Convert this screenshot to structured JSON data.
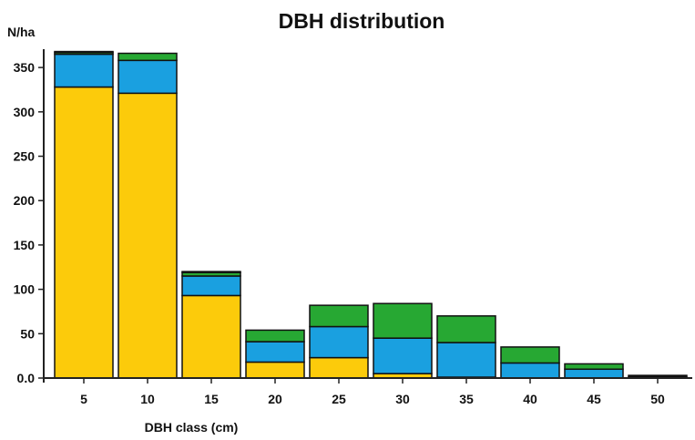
{
  "chart_data": {
    "type": "bar",
    "stacked": true,
    "title": "DBH distribution",
    "xlabel": "DBH class (cm)",
    "ylabel": "N/ha",
    "categories": [
      "5",
      "10",
      "15",
      "20",
      "25",
      "30",
      "35",
      "40",
      "45",
      "50"
    ],
    "ylim": [
      0,
      370
    ],
    "yticks": [
      0,
      50,
      100,
      150,
      200,
      250,
      300,
      350
    ],
    "ytick_labels": [
      "0.0",
      "50",
      "100",
      "150",
      "200",
      "250",
      "300",
      "350"
    ],
    "grid": false,
    "legend": "none",
    "series": [
      {
        "color": "#FCCB0B",
        "values": [
          328,
          321,
          93,
          18,
          23,
          5,
          1,
          0,
          0,
          0
        ]
      },
      {
        "color": "#1AA0E0",
        "values": [
          37,
          37,
          22,
          23,
          35,
          40,
          39,
          17,
          10,
          0
        ]
      },
      {
        "color": "#27A833",
        "values": [
          2,
          8,
          4,
          13,
          24,
          39,
          30,
          18,
          6,
          1
        ]
      },
      {
        "color": "#111111",
        "values": [
          1,
          0,
          1,
          0,
          0,
          0,
          0,
          0,
          0,
          2
        ]
      }
    ]
  }
}
